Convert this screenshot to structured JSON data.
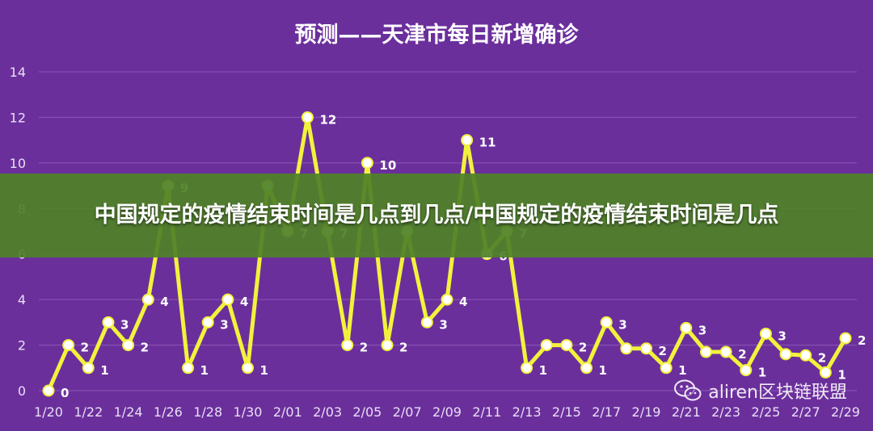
{
  "banner": {
    "text": "中国规定的疫情结束时间是几点到几点/中国规定的疫情结束时间是几点"
  },
  "watermark": {
    "text": "aliren区块链联盟",
    "icon": "wechat-icon"
  },
  "colors": {
    "background": "#6b2f9c",
    "line": "#f2f23c",
    "marker_fill": "#ffffff",
    "grid": "#8a57b3",
    "banner": "#508228"
  },
  "chart_data": {
    "type": "line",
    "title": "预测——天津市每日新增确诊",
    "xlabel": "",
    "ylabel": "",
    "ylim": [
      0,
      14
    ],
    "yticks": [
      0,
      2,
      4,
      6,
      8,
      10,
      12,
      14
    ],
    "grid": true,
    "x": [
      "1/20",
      "1/21",
      "1/22",
      "1/23",
      "1/24",
      "1/25",
      "1/26",
      "1/27",
      "1/28",
      "1/29",
      "1/30",
      "1/31",
      "2/01",
      "2/02",
      "2/03",
      "2/04",
      "2/05",
      "2/06",
      "2/07",
      "2/08",
      "2/09",
      "2/10",
      "2/11",
      "2/12",
      "2/13",
      "2/14",
      "2/15",
      "2/16",
      "2/17",
      "2/18",
      "2/19",
      "2/20",
      "2/21",
      "2/22",
      "2/23",
      "2/24",
      "2/25",
      "2/26",
      "2/27",
      "2/28",
      "2/29"
    ],
    "xticks": [
      "1/20",
      "1/22",
      "1/24",
      "1/26",
      "1/28",
      "1/30",
      "2/01",
      "2/03",
      "2/05",
      "2/07",
      "2/09",
      "2/11",
      "2/13",
      "2/15",
      "2/17",
      "2/19",
      "2/21",
      "2/23",
      "2/25",
      "2/27",
      "2/29"
    ],
    "series": [
      {
        "values": [
          0,
          2,
          1,
          3,
          2,
          4,
          9,
          1,
          3,
          4,
          1,
          9,
          7,
          12,
          7,
          2,
          10,
          2,
          7,
          3,
          4,
          11,
          6,
          7,
          1,
          2,
          2,
          1,
          3,
          1.85,
          1.85,
          1,
          2.75,
          1.7,
          1.7,
          0.9,
          2.5,
          1.6,
          1.55,
          0.8,
          2.3
        ],
        "labels": [
          "0",
          "2",
          "1",
          "3",
          "2",
          "4",
          "9",
          "1",
          "3",
          "4",
          "1",
          "",
          "7",
          "12",
          "7",
          "2",
          "10",
          "2",
          "",
          "3",
          "4",
          "11",
          "6",
          "7",
          "1",
          "",
          "2",
          "1",
          "3",
          "",
          "2",
          "1",
          "3",
          "",
          "2",
          "1",
          "3",
          "",
          "2",
          "1",
          "2"
        ]
      }
    ]
  }
}
